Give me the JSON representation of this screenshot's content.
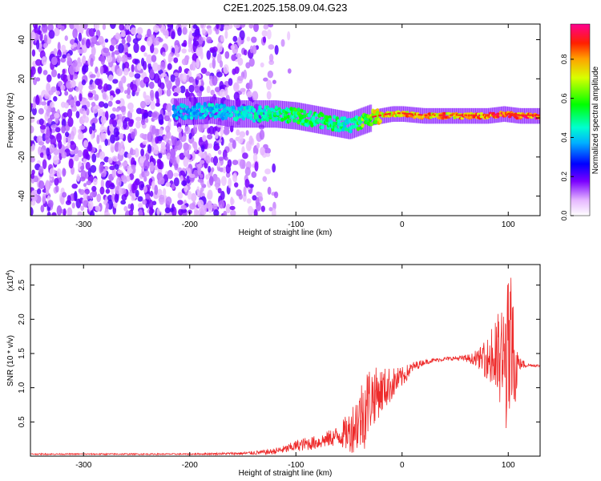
{
  "title": "C2E1.2025.158.09.04.G23",
  "colors": {
    "snr_line": "#ee2a2a",
    "signal_core": "#ff2020",
    "frame": "#000000"
  },
  "chart_data": [
    {
      "type": "heatmap",
      "xlabel": "Height of straight line (km)",
      "ylabel": "Frequency (Hz)",
      "xlim": [
        -350,
        130
      ],
      "ylim": [
        -50,
        48
      ],
      "x_ticks": [
        -300,
        -200,
        -100,
        0,
        100
      ],
      "y_ticks": [
        -40,
        -20,
        0,
        20,
        40
      ],
      "colorbar": {
        "label": "Normalized spectral amplitude",
        "range": [
          0,
          0.98
        ],
        "ticks": [
          0.0,
          0.2,
          0.4,
          0.6,
          0.8
        ],
        "tick_labels": [
          "0.0",
          "0.2",
          "0.4",
          "0.6",
          "0.8"
        ],
        "colormap": "rainbow"
      },
      "signal_trace": {
        "x": [
          -215,
          -180,
          -160,
          -120,
          -100,
          -80,
          -60,
          -50,
          -40,
          -30,
          -20,
          -10,
          0,
          20,
          40,
          60,
          80,
          95,
          110,
          130
        ],
        "freq": [
          3,
          4,
          2,
          2,
          1,
          -1,
          -3,
          -4,
          -2,
          0,
          1,
          2,
          2,
          1,
          1,
          1,
          1,
          2,
          1,
          1
        ],
        "amplitude": [
          0.35,
          0.4,
          0.4,
          0.5,
          0.55,
          0.55,
          0.5,
          0.45,
          0.6,
          0.7,
          0.8,
          0.8,
          0.85,
          0.9,
          0.9,
          0.9,
          0.92,
          0.95,
          0.98,
          0.98
        ]
      },
      "noise_extent_x": [
        -350,
        -120
      ]
    },
    {
      "type": "line",
      "xlabel": "Height of straight line (km)",
      "ylabel": "SNR (10 * v/v)",
      "y_multiplier_label": "(x10",
      "y_multiplier_exp": "4",
      "y_multiplier_close": ")",
      "xlim": [
        -350,
        130
      ],
      "ylim": [
        0,
        2.8
      ],
      "x_ticks": [
        -300,
        -200,
        -100,
        0,
        100
      ],
      "y_ticks": [
        0.5,
        1.0,
        1.5,
        2.0,
        2.5
      ],
      "y_tick_labels": [
        "0.5",
        "1.0",
        "1.5",
        "2.0",
        "2.5"
      ],
      "series": [
        {
          "x": [
            -350,
            -300,
            -250,
            -200,
            -150,
            -125,
            -110,
            -100,
            -90,
            -80,
            -70,
            -60,
            -50,
            -45,
            -40,
            -35,
            -30,
            -25,
            -20,
            -15,
            -10,
            -5,
            0,
            10,
            20,
            30,
            40,
            50,
            60,
            70,
            80,
            90,
            95,
            100,
            105,
            110,
            120,
            130
          ],
          "y": [
            0.03,
            0.03,
            0.03,
            0.03,
            0.04,
            0.06,
            0.1,
            0.15,
            0.18,
            0.2,
            0.25,
            0.3,
            0.35,
            0.45,
            0.55,
            0.7,
            0.85,
            0.9,
            0.95,
            1.0,
            1.05,
            1.1,
            1.15,
            1.3,
            1.37,
            1.4,
            1.42,
            1.43,
            1.43,
            1.42,
            1.42,
            1.4,
            1.38,
            1.42,
            1.4,
            1.35,
            1.33,
            1.32
          ],
          "noise_amplitude": [
            0.01,
            0.01,
            0.01,
            0.01,
            0.02,
            0.04,
            0.06,
            0.08,
            0.1,
            0.1,
            0.12,
            0.15,
            0.3,
            0.4,
            0.5,
            0.6,
            0.5,
            0.4,
            0.35,
            0.3,
            0.25,
            0.2,
            0.15,
            0.08,
            0.04,
            0.03,
            0.03,
            0.03,
            0.05,
            0.1,
            0.3,
            0.7,
            0.9,
            1.2,
            0.9,
            0.1,
            0.02,
            0.02
          ]
        }
      ]
    }
  ]
}
